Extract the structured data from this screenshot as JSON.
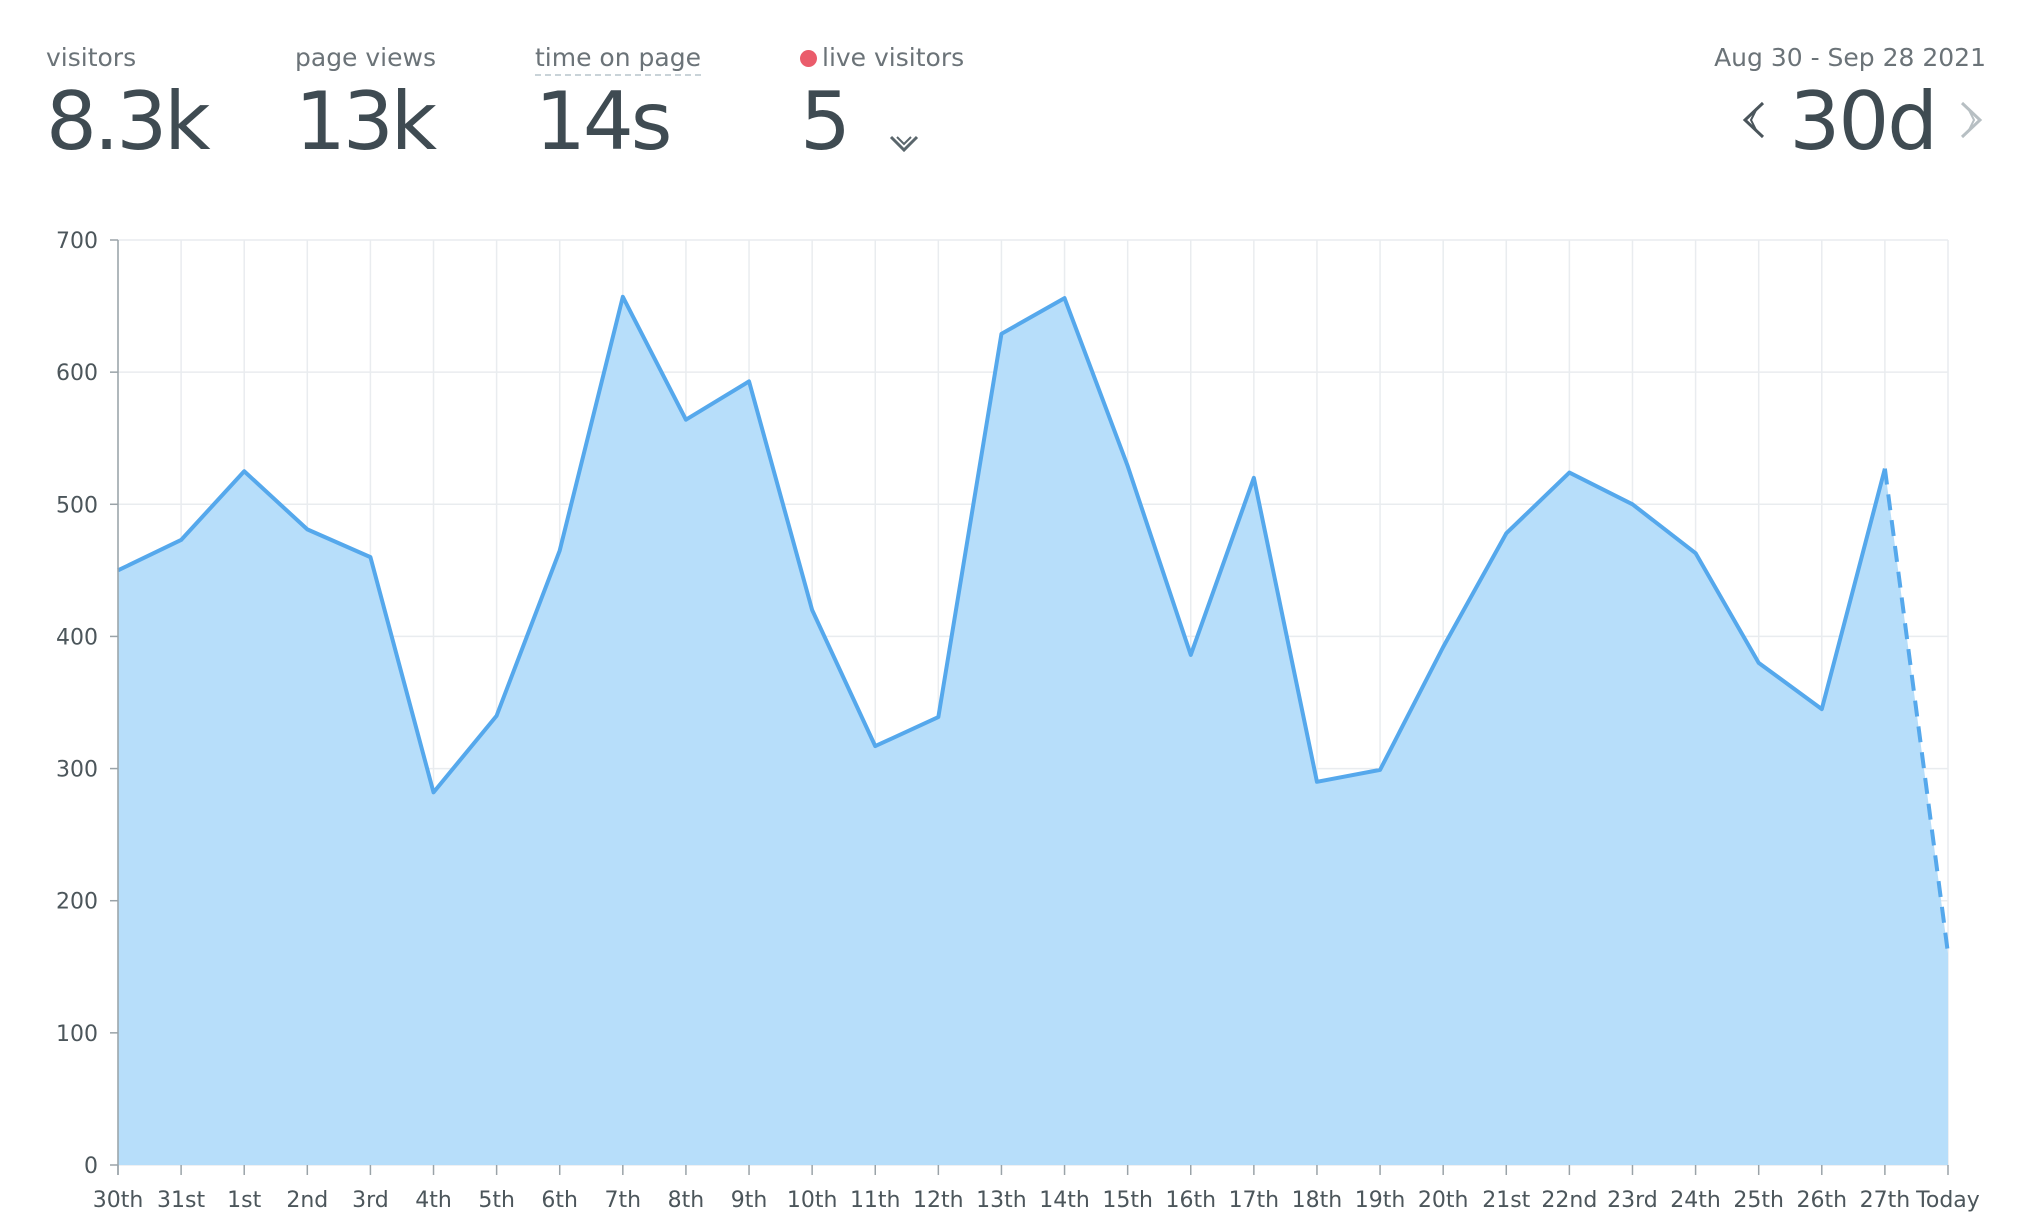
{
  "stats": {
    "visitors": {
      "label": "visitors",
      "value": "8.3k"
    },
    "page_views": {
      "label": "page views",
      "value": "13k"
    },
    "time_on_page": {
      "label": "time on page",
      "value": "14s"
    },
    "live_visitors": {
      "label": "live visitors",
      "value": "5",
      "dot_color": "#ea5c6b"
    }
  },
  "range": {
    "dates": "Aug 30 - Sep 28 2021",
    "period": "30d"
  },
  "icons": {
    "prev": "chevron-left-icon",
    "next": "chevron-right-icon",
    "live_toggle": "chevron-down-icon"
  },
  "colors": {
    "line": "#55a8ec",
    "fill": "#b7defa",
    "grid": "#e9ecef"
  },
  "chart_data": {
    "type": "area",
    "categories": [
      "30th",
      "31st",
      "1st",
      "2nd",
      "3rd",
      "4th",
      "5th",
      "6th",
      "7th",
      "8th",
      "9th",
      "10th",
      "11th",
      "12th",
      "13th",
      "14th",
      "15th",
      "16th",
      "17th",
      "18th",
      "19th",
      "20th",
      "21st",
      "22nd",
      "23rd",
      "24th",
      "25th",
      "26th",
      "27th",
      "Today"
    ],
    "series": [
      {
        "values": [
          450,
          473,
          525,
          481,
          460,
          282,
          340,
          465,
          657,
          564,
          593,
          420,
          317,
          339,
          629,
          656,
          529,
          386,
          520,
          290,
          299,
          392,
          478,
          524,
          500,
          463,
          380,
          345,
          527,
          160
        ]
      }
    ],
    "ylim": [
      0,
      700
    ],
    "yticks": [
      0,
      100,
      200,
      300,
      400,
      500,
      600,
      700
    ],
    "grid": true,
    "last_segment_dashed": true
  }
}
